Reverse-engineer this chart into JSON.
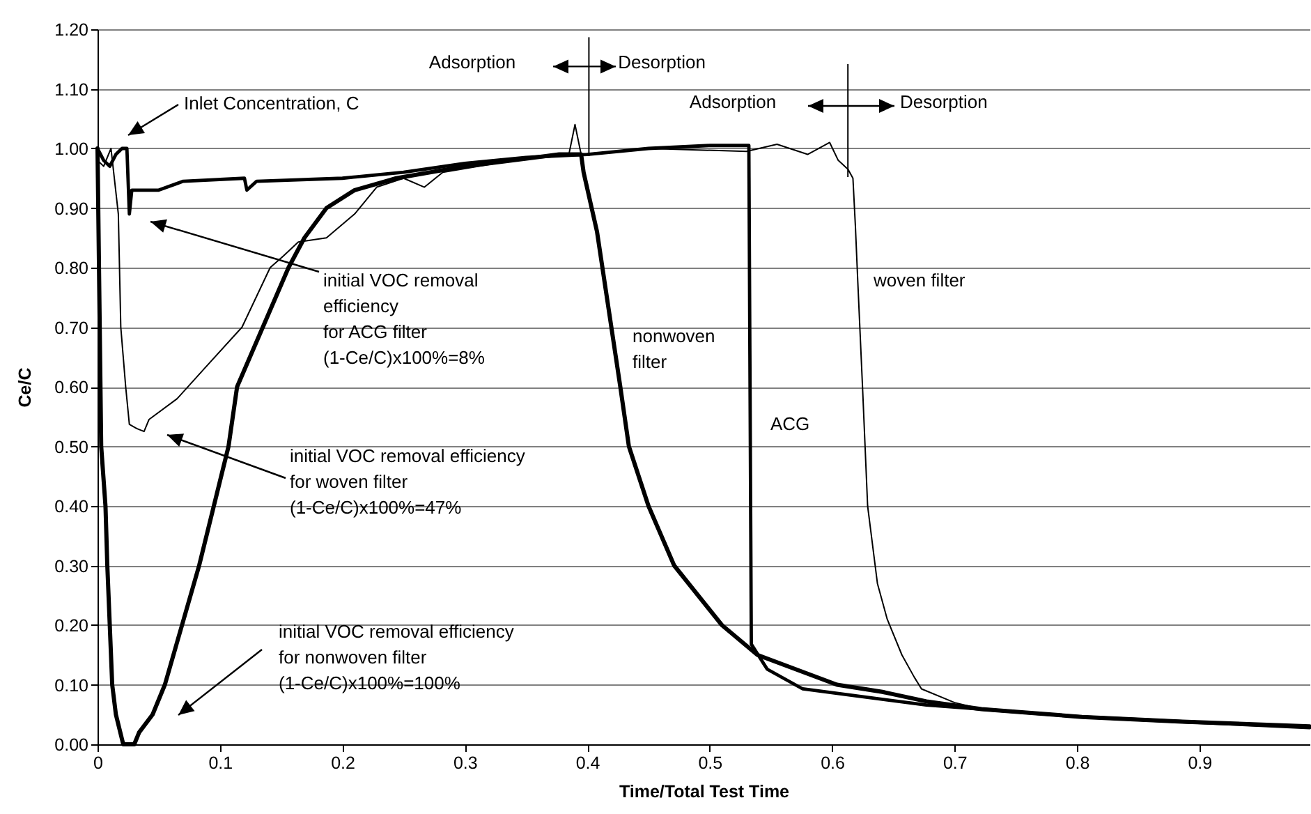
{
  "chart_data": {
    "type": "line",
    "xlabel": "Time/Total Test Time",
    "ylabel": "Ce/C",
    "xlim": [
      0,
      0.99
    ],
    "xticks": [
      0,
      0.1,
      0.2,
      0.3,
      0.4,
      0.5,
      0.6,
      0.7,
      0.8,
      0.9
    ],
    "ylim": [
      0,
      1.2
    ],
    "yticks": [
      {
        "value": 0,
        "label": "0.00"
      },
      {
        "value": 0.1,
        "label": "0.10"
      },
      {
        "value": 0.2,
        "label": "0.20"
      },
      {
        "value": 0.3,
        "label": "0.30"
      },
      {
        "value": 0.4,
        "label": "0.40"
      },
      {
        "value": 0.5,
        "label": "0.50"
      },
      {
        "value": 0.6,
        "label": "0.60"
      },
      {
        "value": 0.7,
        "label": "0.70"
      },
      {
        "value": 0.8,
        "label": "0.80"
      },
      {
        "value": 0.9,
        "label": "0.90"
      },
      {
        "value": 1,
        "label": "1.00"
      },
      {
        "value": 1.1,
        "label": "1.10"
      },
      {
        "value": 1.2,
        "label": "1.20"
      }
    ],
    "grid": "y",
    "line_style": "solid",
    "series": [
      {
        "color": "#000000",
        "x": [
          0,
          0.003,
          0.0065,
          0.008,
          0.01,
          0.012,
          0.015,
          0.021,
          0.03,
          0.034,
          0.045,
          0.055,
          0.069,
          0.083,
          0.095,
          0.107,
          0.114,
          0.135,
          0.156,
          0.169,
          0.187,
          0.21,
          0.244,
          0.3,
          0.377,
          0.395,
          0.397,
          0.408,
          0.427,
          0.434,
          0.45,
          0.471,
          0.51,
          0.539,
          0.604,
          0.641,
          0.677,
          0.722,
          0.804,
          0.886,
          0.99
        ],
        "values": [
          1.0,
          0.5,
          0.4,
          0.3,
          0.2,
          0.1,
          0.05,
          0.0,
          0.0,
          0.02,
          0.05,
          0.1,
          0.2,
          0.3,
          0.4,
          0.5,
          0.6,
          0.7,
          0.8,
          0.85,
          0.9,
          0.93,
          0.95,
          0.97,
          0.99,
          0.99,
          0.96,
          0.86,
          0.6,
          0.5,
          0.4,
          0.3,
          0.2,
          0.15,
          0.1,
          0.088,
          0.072,
          0.059,
          0.046,
          0.038,
          0.03
        ]
      },
      {
        "color": "#000000",
        "x": [
          0,
          0.005,
          0.01,
          0.015,
          0.02,
          0.024,
          0.026,
          0.028,
          0.05,
          0.07,
          0.12,
          0.122,
          0.13,
          0.2,
          0.25,
          0.3,
          0.35,
          0.4,
          0.45,
          0.5,
          0.532,
          0.534,
          0.547,
          0.576,
          0.617,
          0.677,
          0.722,
          0.804,
          0.886,
          0.99
        ],
        "values": [
          1.0,
          0.98,
          0.97,
          0.99,
          1.0,
          1.0,
          0.89,
          0.93,
          0.93,
          0.945,
          0.95,
          0.93,
          0.945,
          0.95,
          0.96,
          0.975,
          0.985,
          0.99,
          1.0,
          1.005,
          1.005,
          0.168,
          0.126,
          0.093,
          0.082,
          0.066,
          0.059,
          0.046,
          0.038,
          0.028
        ]
      },
      {
        "color": "#000000",
        "x": [
          0,
          0.005,
          0.011,
          0.017,
          0.019,
          0.023,
          0.026,
          0.032,
          0.038,
          0.042,
          0.065,
          0.087,
          0.118,
          0.141,
          0.152,
          0.164,
          0.187,
          0.21,
          0.228,
          0.25,
          0.267,
          0.282,
          0.34,
          0.385,
          0.39,
          0.395,
          0.45,
          0.53,
          0.555,
          0.58,
          0.598,
          0.605,
          0.613,
          0.617,
          0.619,
          0.621,
          0.625,
          0.629,
          0.637,
          0.645,
          0.657,
          0.667,
          0.673,
          0.7,
          0.722,
          0.804,
          0.886,
          0.99
        ],
        "values": [
          0.98,
          0.97,
          1.0,
          0.89,
          0.7,
          0.6,
          0.537,
          0.53,
          0.525,
          0.545,
          0.58,
          0.63,
          0.7,
          0.8,
          0.82,
          0.843,
          0.85,
          0.89,
          0.935,
          0.95,
          0.935,
          0.96,
          0.98,
          0.99,
          1.04,
          0.99,
          1.0,
          0.995,
          1.007,
          0.99,
          1.01,
          0.98,
          0.965,
          0.95,
          0.87,
          0.775,
          0.592,
          0.4,
          0.27,
          0.21,
          0.15,
          0.113,
          0.093,
          0.07,
          0.059,
          0.046,
          0.038,
          0.03
        ]
      }
    ],
    "annotations": [
      "Inlet Concentration, C",
      "initial VOC removal\nefficiency\nfor ACG filter\n(1-Ce/C)x100%=8%",
      "initial VOC removal efficiency\nfor woven filter\n(1-Ce/C)x100%=47%",
      "initial VOC removal efficiency\nfor nonwoven filter\n(1-Ce/C)x100%=100%",
      "Adsorption",
      "Desorption",
      "Adsorption",
      "Desorption",
      "nonwoven\nfilter",
      "ACG",
      "woven filter"
    ]
  }
}
